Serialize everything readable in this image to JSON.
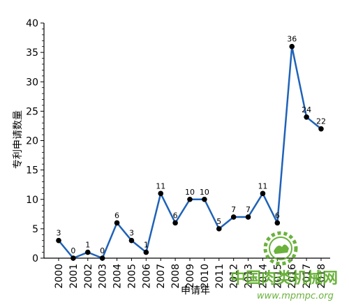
{
  "chart_data": {
    "type": "line",
    "title": "",
    "xlabel": "申请年",
    "ylabel": "专利申请数量",
    "categories": [
      "2000",
      "2001",
      "2002",
      "2003",
      "2004",
      "2005",
      "2006",
      "2007",
      "2008",
      "2009",
      "2010",
      "2011",
      "2012",
      "2013",
      "2014",
      "2015",
      "2016",
      "2017",
      "2018"
    ],
    "series": [
      {
        "values": [
          3,
          0,
          1,
          0,
          6,
          3,
          1,
          11,
          6,
          10,
          10,
          5,
          7,
          7,
          11,
          6,
          36,
          24,
          22
        ]
      }
    ],
    "yticks": [
      0,
      5,
      10,
      15,
      20,
      25,
      30,
      35,
      40
    ],
    "ylim": [
      0,
      40
    ],
    "grid": false,
    "line_color": "#1f62b8",
    "marker_color": "#000000"
  },
  "watermark": {
    "logo_text": "中国肉类机械网",
    "url": "www.mpmpc.org",
    "color": "#5aaa28"
  }
}
